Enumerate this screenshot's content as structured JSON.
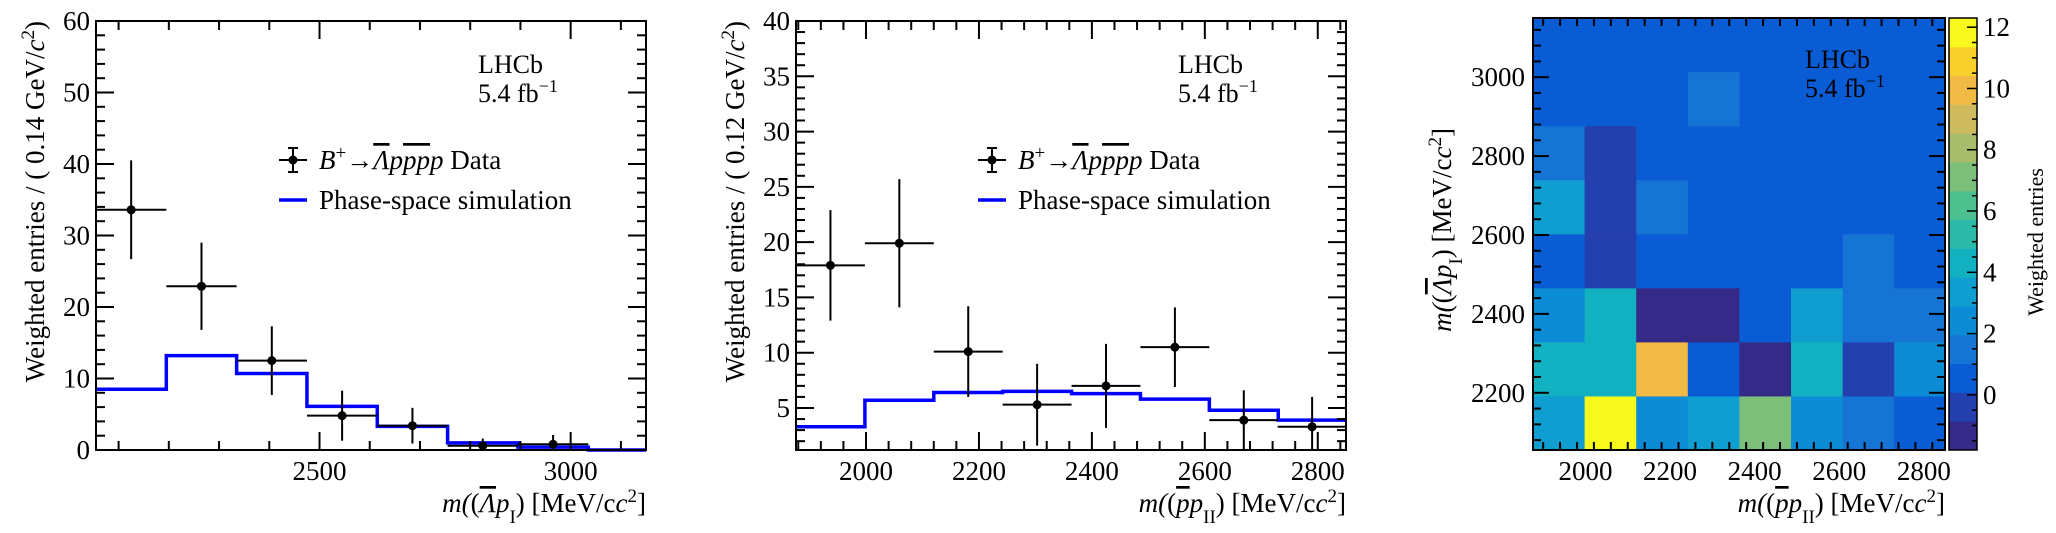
{
  "colors": {
    "data": "#000000",
    "sim": "#0000ff",
    "colormap": [
      "#352a87",
      "#243fae",
      "#0a5cd5",
      "#1674d4",
      "#0d8cd6",
      "#0f9ecf",
      "#12b1c2",
      "#2bbaa9",
      "#4cc08f",
      "#7cbf7b",
      "#a7bd6b",
      "#cebb60",
      "#f0ba45",
      "#f9d02b",
      "#f8f81c"
    ]
  },
  "chart_data": [
    {
      "type": "histogram",
      "title": "",
      "xlabel": "m(Λ̄ p_I) [MeV/c²]",
      "xlabel_parts": {
        "pre": "m(",
        "bar": "Λ",
        "p": "p",
        "sub": "I",
        "post": ") [MeV/c",
        "sup": "2",
        "end": "]"
      },
      "ylabel": "Weighted entries / ( 0.14 GeV/c² )",
      "ylabel_parts": {
        "main": "Weighted entries / ( 0.14 GeV/",
        "c": "c",
        "sup": "2",
        "end": ")"
      },
      "xlim": [
        2055,
        3150
      ],
      "ylim": [
        0,
        60
      ],
      "xticks": [
        2500,
        3000
      ],
      "xtick_labels": [
        "2500",
        "3000"
      ],
      "yticks": [
        0,
        10,
        20,
        30,
        40,
        50,
        60
      ],
      "ytick_labels": [
        "0",
        "10",
        "20",
        "30",
        "40",
        "50",
        "60"
      ],
      "bin_edges": [
        2055,
        2195,
        2335,
        2475,
        2615,
        2755,
        2895,
        3035,
        3150
      ],
      "series": [
        {
          "name": "B⁺→Λ̄pp̄p Data",
          "kind": "points",
          "x": [
            2125,
            2265,
            2405,
            2545,
            2685,
            2825,
            2965
          ],
          "y": [
            33.6,
            22.9,
            12.5,
            4.8,
            3.4,
            0.6,
            0.8
          ],
          "yerr": [
            6.9,
            6.1,
            4.8,
            3.5,
            2.5,
            1.0,
            1.3
          ]
        },
        {
          "name": "Phase-space simulation",
          "kind": "step",
          "values": [
            8.5,
            13.2,
            10.7,
            6.1,
            3.3,
            1.0,
            0.4,
            0.0
          ]
        }
      ],
      "legend": {
        "position": "center-right",
        "data_label": "Data",
        "data_decay": {
          "B": "B",
          "Bsup": "+",
          "arrow": "→",
          "lam": "Λ",
          "p1": "p",
          "p2": "p",
          "p3": "p",
          "p4": "p"
        },
        "sim_label": "Phase-space simulation"
      },
      "annotation": {
        "line1": "LHCb",
        "line2_pre": "5.4 fb",
        "line2_sup": "−1"
      }
    },
    {
      "type": "histogram",
      "title": "",
      "xlabel": "m(p̄ p_II) [MeV/c²]",
      "xlabel_parts": {
        "pre": "m(",
        "bar": "p",
        "p": "p",
        "sub": "II",
        "post": ") [MeV/c",
        "sup": "2",
        "end": "]"
      },
      "ylabel": "Weighted entries / ( 0.12 GeV/c² )",
      "ylabel_parts": {
        "main": "Weighted entries / ( 0.12 GeV/",
        "c": "c",
        "sup": "2",
        "end": ")"
      },
      "xlim": [
        1876,
        2850
      ],
      "ylim": [
        1.2,
        40
      ],
      "xticks": [
        2000,
        2200,
        2400,
        2600,
        2800
      ],
      "xtick_labels": [
        "2000",
        "2200",
        "2400",
        "2600",
        "2800"
      ],
      "yticks": [
        5,
        10,
        15,
        20,
        25,
        30,
        35,
        40
      ],
      "ytick_labels": [
        "5",
        "10",
        "15",
        "20",
        "25",
        "30",
        "35",
        "40"
      ],
      "bin_edges": [
        1876,
        1998,
        2120,
        2242,
        2364,
        2486,
        2608,
        2730,
        2850
      ],
      "series": [
        {
          "name": "B⁺→Λ̄pp̄p Data",
          "kind": "points",
          "x": [
            1937,
            2059,
            2181,
            2303,
            2425,
            2547,
            2669,
            2790
          ],
          "y": [
            17.9,
            19.9,
            10.1,
            5.3,
            7.0,
            10.5,
            3.9,
            3.3
          ],
          "yerr": [
            5.0,
            5.8,
            4.1,
            3.7,
            3.8,
            3.6,
            2.7,
            2.7
          ]
        },
        {
          "name": "Phase-space simulation",
          "kind": "step",
          "values": [
            3.3,
            5.7,
            6.4,
            6.5,
            6.3,
            5.8,
            4.8,
            3.9
          ]
        }
      ],
      "legend": {
        "position": "center-right",
        "data_label": "Data",
        "data_decay": {
          "B": "B",
          "Bsup": "+",
          "arrow": "→",
          "lam": "Λ",
          "p1": "p",
          "p2": "p",
          "p3": "p",
          "p4": "p"
        },
        "sim_label": "Phase-space simulation"
      },
      "annotation": {
        "line1": "LHCb",
        "line2_pre": "5.4 fb",
        "line2_sup": "−1"
      }
    },
    {
      "type": "heatmap",
      "title": "",
      "xlabel": "m(p̄ p_II) [MeV/c²]",
      "xlabel_parts": {
        "pre": "m(",
        "bar": "p",
        "p": "p",
        "sub": "II",
        "post": ") [MeV/c",
        "sup": "2",
        "end": "]"
      },
      "ylabel": "m(Λ̄ p_I) [MeV/c²]",
      "ylabel_parts": {
        "pre": "m(",
        "bar": "Λ",
        "p": "p",
        "sub": "I",
        "post": ") [MeV/c",
        "sup": "2",
        "end": "]"
      },
      "xlim": [
        1876,
        2850
      ],
      "ylim": [
        2055,
        3150
      ],
      "xticks": [
        2000,
        2200,
        2400,
        2600,
        2800
      ],
      "xtick_labels": [
        "2000",
        "2200",
        "2400",
        "2600",
        "2800"
      ],
      "yticks": [
        2200,
        2400,
        2600,
        2800,
        3000
      ],
      "ytick_labels": [
        "2200",
        "2400",
        "2600",
        "2800",
        "3000"
      ],
      "x_edges": [
        1876,
        1998,
        2120,
        2242,
        2364,
        2486,
        2608,
        2730,
        2850
      ],
      "y_edges": [
        2055,
        2192,
        2329,
        2466,
        2603,
        2740,
        2877,
        3014,
        3150
      ],
      "z": [
        [
          3.0,
          12.0,
          2.0,
          3.0,
          7.5,
          2.5,
          1.5,
          1.0
        ],
        [
          4.5,
          4.5,
          9.5,
          1.0,
          -1.5,
          4.0,
          -0.5,
          2.5
        ],
        [
          2.5,
          4.0,
          -1.0,
          -1.0,
          1.0,
          3.0,
          1.5,
          1.5
        ],
        [
          1.0,
          0.0,
          0.5,
          1.0,
          1.0,
          0.5,
          1.5,
          0.5
        ],
        [
          3.5,
          0.0,
          1.5,
          1.0,
          1.0,
          0.5,
          0.5,
          0.5
        ],
        [
          1.5,
          0.0,
          1.0,
          1.0,
          0.5,
          0.5,
          0.5,
          0.5
        ],
        [
          0.5,
          0.5,
          0.5,
          1.5,
          0.5,
          0.5,
          0.5,
          0.5
        ],
        [
          0.5,
          0.5,
          0.5,
          0.5,
          0.5,
          0.5,
          0.5,
          0.5
        ]
      ],
      "zlim": [
        -1.8,
        12.3
      ],
      "colorbar": {
        "label": "Weighted entries",
        "ticks": [
          0,
          2,
          4,
          6,
          8,
          10,
          12
        ],
        "tick_labels": [
          "0",
          "2",
          "4",
          "6",
          "8",
          "10",
          "12"
        ]
      },
      "annotation": {
        "line1": "LHCb",
        "line2_pre": "5.4 fb",
        "line2_sup": "−1"
      }
    }
  ]
}
